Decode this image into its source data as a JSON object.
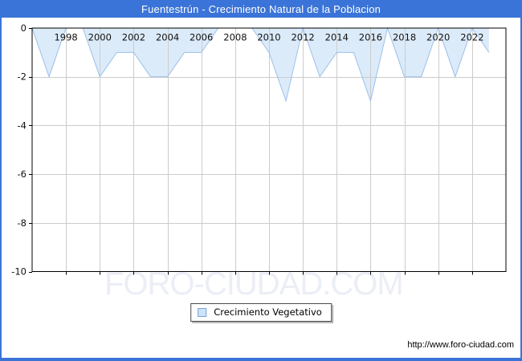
{
  "window": {
    "title": "Fuentestrún - Crecimiento Natural de la Poblacion"
  },
  "chart_data": {
    "type": "area",
    "title": "Fuentestrún - Crecimiento Natural de la Poblacion",
    "series": [
      {
        "name": "Crecimiento Vegetativo",
        "x": [
          1996,
          1997,
          1998,
          1999,
          2000,
          2001,
          2002,
          2003,
          2004,
          2005,
          2006,
          2007,
          2008,
          2009,
          2010,
          2011,
          2012,
          2013,
          2014,
          2015,
          2016,
          2017,
          2018,
          2019,
          2020,
          2021,
          2022,
          2023
        ],
        "values": [
          0,
          -2,
          0,
          0,
          -2,
          -1,
          -1,
          -2,
          -2,
          -1,
          -1,
          0,
          0,
          0,
          -1,
          -3,
          0,
          -2,
          -1,
          -1,
          -3,
          0,
          -2,
          -2,
          0,
          -2,
          0,
          -1
        ]
      }
    ],
    "xlim": [
      1996,
      2024
    ],
    "ylim": [
      -10,
      0
    ],
    "x_ticks": [
      1998,
      2000,
      2002,
      2004,
      2006,
      2008,
      2010,
      2012,
      2014,
      2016,
      2018,
      2020,
      2022
    ],
    "y_ticks": [
      0,
      -2,
      -4,
      -6,
      -8,
      -10
    ],
    "grid": true,
    "x_labels_position": "inside-top",
    "legend_position": "bottom-center",
    "colors": {
      "fill": "#dcebfa",
      "line": "#9cc0e8",
      "grid": "#cccccc",
      "axis": "#000000",
      "label_text": "#111111"
    }
  },
  "legend": {
    "label": "Crecimiento Vegetativo"
  },
  "watermark": {
    "text": "FORO-CIUDAD.COM"
  },
  "footer": {
    "url": "http://www.foro-ciudad.com"
  },
  "theme": {
    "frame_color": "#3b74d8",
    "title_text_color": "#ffffff"
  }
}
